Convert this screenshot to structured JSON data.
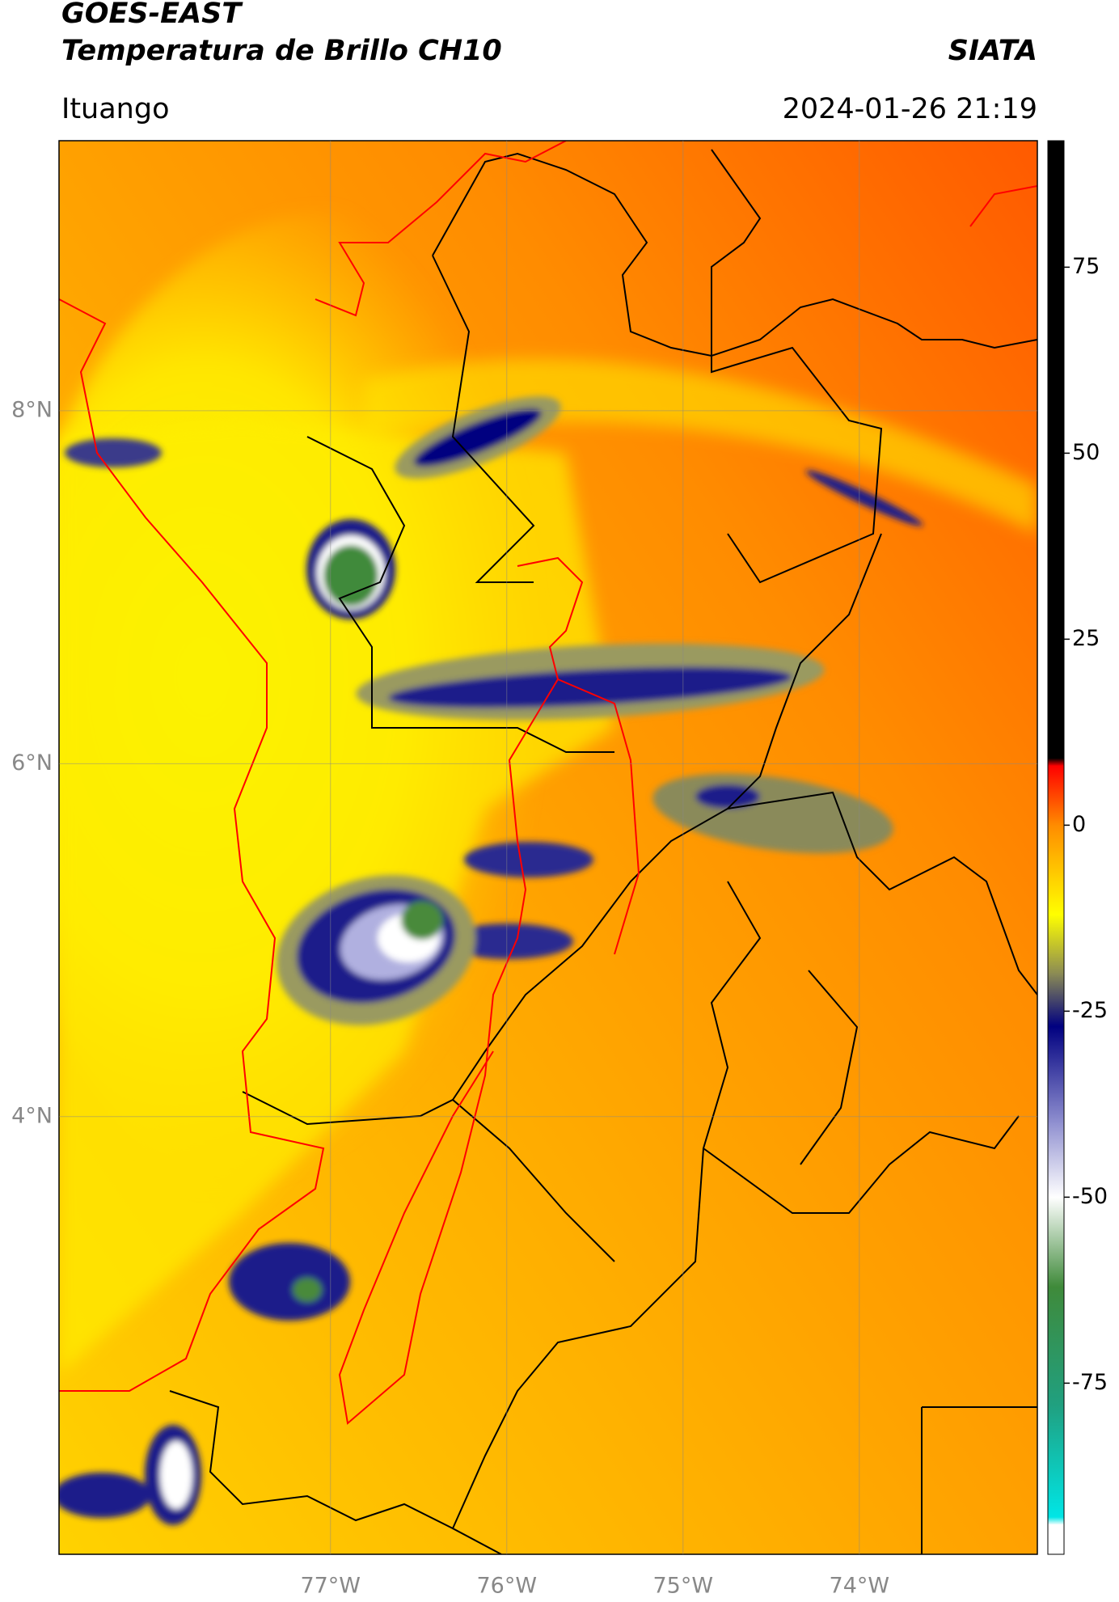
{
  "chart_data": {
    "type": "map",
    "title": "GOES-EAST",
    "subtitle": "Temperatura de Brillo CH10",
    "source": "SIATA",
    "location": "Ituango",
    "datetime": "2024-01-26 21:19",
    "xlim": [
      -78.54,
      -72.99
    ],
    "ylim": [
      1.52,
      9.53
    ],
    "xticks": [
      {
        "value": -77,
        "label": "77°W"
      },
      {
        "value": -76,
        "label": "76°W"
      },
      {
        "value": -75,
        "label": "75°W"
      },
      {
        "value": -74,
        "label": "74°W"
      }
    ],
    "yticks": [
      {
        "value": 8,
        "label": "8°N"
      },
      {
        "value": 6,
        "label": "6°N"
      },
      {
        "value": 4,
        "label": "4°N"
      }
    ],
    "grid": true,
    "colorbar": {
      "lim": [
        -98,
        92
      ],
      "ticks": [
        -75,
        -50,
        -25,
        0,
        25,
        50,
        75
      ],
      "stops": [
        {
          "value": 92,
          "color": "#000000"
        },
        {
          "value": 9,
          "color": "#000000"
        },
        {
          "value": 8,
          "color": "#ff0000"
        },
        {
          "value": 0,
          "color": "#ff8c00"
        },
        {
          "value": -12,
          "color": "#ffff00"
        },
        {
          "value": -20,
          "color": "#8a8a55"
        },
        {
          "value": -27,
          "color": "#000080"
        },
        {
          "value": -40,
          "color": "#9090d0"
        },
        {
          "value": -50,
          "color": "#ffffff"
        },
        {
          "value": -62,
          "color": "#3f8a3a"
        },
        {
          "value": -78,
          "color": "#20a080"
        },
        {
          "value": -93,
          "color": "#00e6e6"
        },
        {
          "value": -94,
          "color": "#ffffff"
        },
        {
          "value": -98,
          "color": "#ffffff"
        }
      ]
    }
  }
}
